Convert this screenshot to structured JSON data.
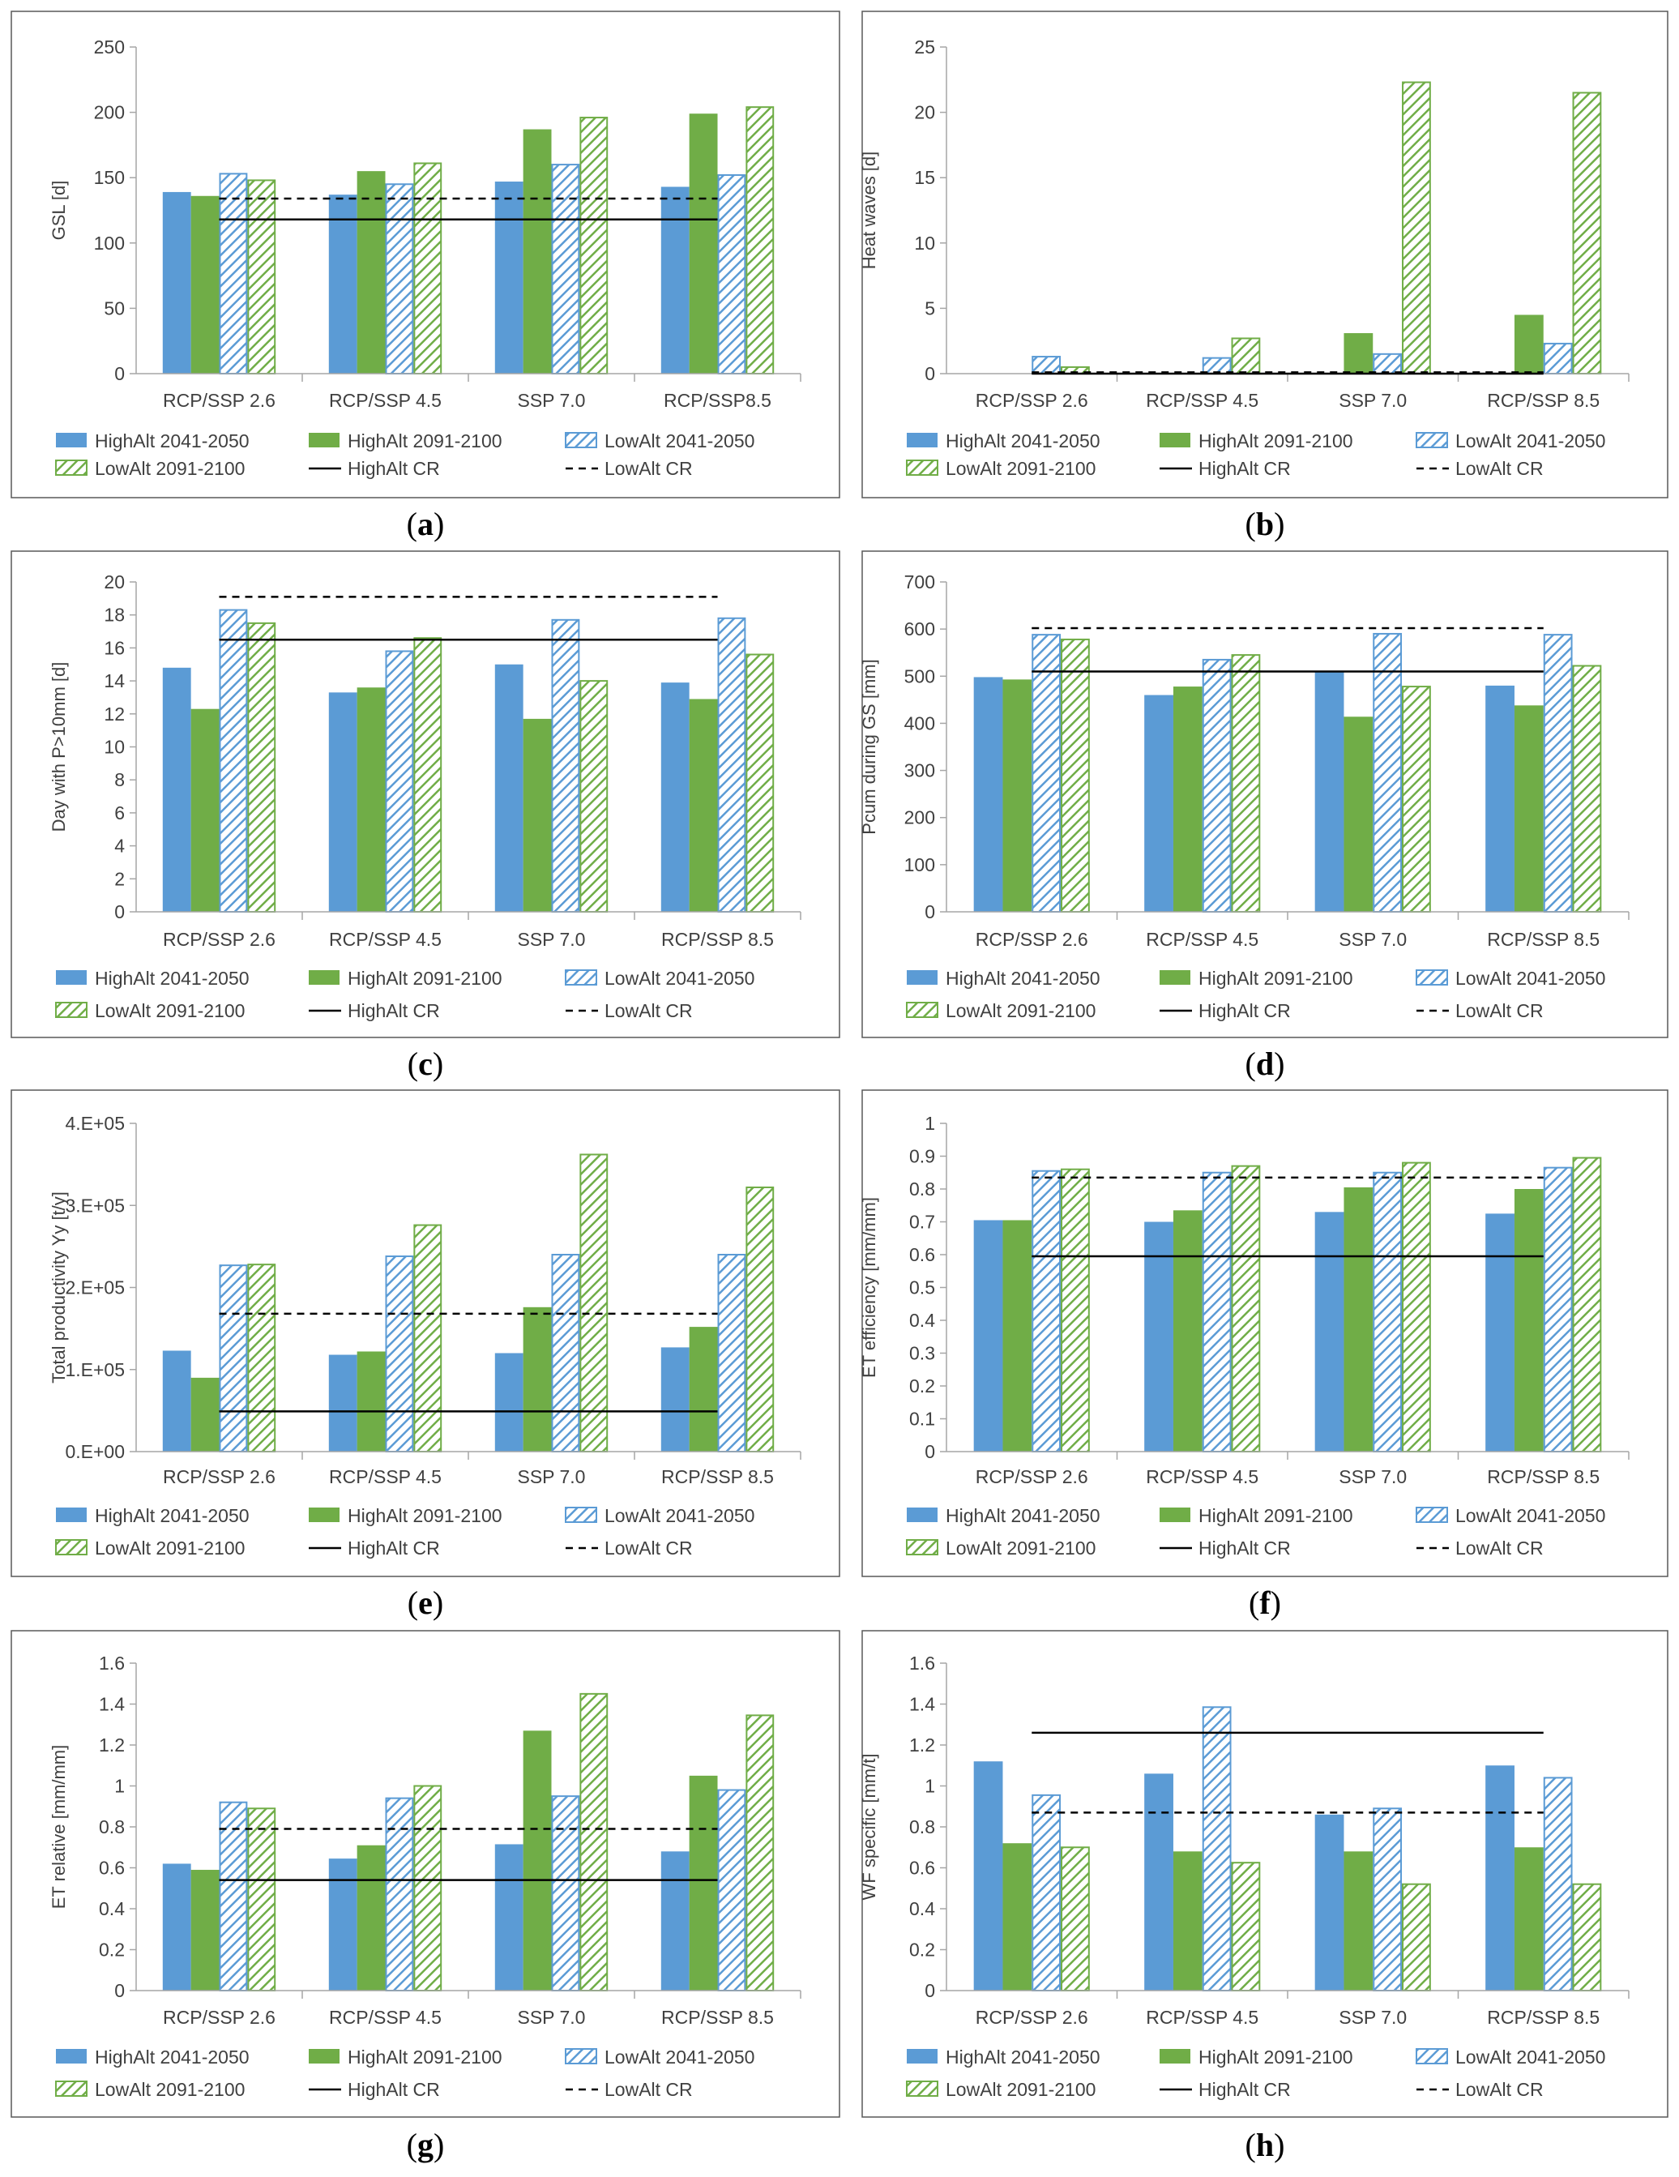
{
  "colors": {
    "blue": "#5b9bd5",
    "green": "#70ad47",
    "axis": "#a6a6a6",
    "text": "#404040"
  },
  "legend": {
    "high_2041": "HighAlt 2041-2050",
    "high_2091": "HighAlt 2091-2100",
    "low_2041": "LowAlt 2041-2050",
    "low_2091": "LowAlt 2091-2100",
    "high_cr": "HighAlt CR",
    "low_cr": "LowAlt CR"
  },
  "chart_data": [
    {
      "panel": "(a)",
      "letter": "a",
      "type": "bar",
      "ylabel": "GSL [d]",
      "ylim": [
        0,
        250
      ],
      "yticks": [
        0,
        50,
        100,
        150,
        200,
        250
      ],
      "ytick_labels": [
        "0",
        "50",
        "100",
        "150",
        "200",
        "250"
      ],
      "categories": [
        "RCP/SSP 2.6",
        "RCP/SSP 4.5",
        "SSP 7.0",
        "RCP/SSP8.5"
      ],
      "series": [
        {
          "name": "HighAlt 2041-2050",
          "values": [
            139,
            137,
            147,
            143
          ]
        },
        {
          "name": "HighAlt 2091-2100",
          "values": [
            136,
            155,
            187,
            199
          ]
        },
        {
          "name": "LowAlt 2041-2050",
          "values": [
            153,
            145,
            160,
            152
          ]
        },
        {
          "name": "LowAlt 2091-2100",
          "values": [
            148,
            161,
            196,
            204
          ]
        }
      ],
      "reference_lines": [
        {
          "name": "HighAlt CR",
          "value": 118
        },
        {
          "name": "LowAlt CR",
          "value": 134
        }
      ]
    },
    {
      "panel": "(b)",
      "letter": "b",
      "type": "bar",
      "ylabel": "Heat waves [d]",
      "ylim": [
        0,
        25
      ],
      "yticks": [
        0,
        5,
        10,
        15,
        20,
        25
      ],
      "ytick_labels": [
        "0",
        "5",
        "10",
        "15",
        "20",
        "25"
      ],
      "categories": [
        "RCP/SSP 2.6",
        "RCP/SSP 4.5",
        "SSP 7.0",
        "RCP/SSP 8.5"
      ],
      "series": [
        {
          "name": "HighAlt 2041-2050",
          "values": [
            0,
            0,
            0,
            0
          ]
        },
        {
          "name": "HighAlt 2091-2100",
          "values": [
            0,
            0,
            3.1,
            4.5
          ]
        },
        {
          "name": "LowAlt 2041-2050",
          "values": [
            1.3,
            1.2,
            1.5,
            2.3
          ]
        },
        {
          "name": "LowAlt 2091-2100",
          "values": [
            0.5,
            2.7,
            22.3,
            21.5
          ]
        }
      ],
      "reference_lines": [
        {
          "name": "HighAlt CR",
          "value": 0
        },
        {
          "name": "LowAlt CR",
          "value": 0.1
        }
      ]
    },
    {
      "panel": "(c)",
      "letter": "c",
      "type": "bar",
      "ylabel": "Day with P>10mm [d]",
      "ylim": [
        0,
        20
      ],
      "yticks": [
        0,
        2,
        4,
        6,
        8,
        10,
        12,
        14,
        16,
        18,
        20
      ],
      "ytick_labels": [
        "0",
        "2",
        "4",
        "6",
        "8",
        "10",
        "12",
        "14",
        "16",
        "18",
        "20"
      ],
      "categories": [
        "RCP/SSP 2.6",
        "RCP/SSP 4.5",
        "SSP 7.0",
        "RCP/SSP 8.5"
      ],
      "series": [
        {
          "name": "HighAlt 2041-2050",
          "values": [
            14.8,
            13.3,
            15.0,
            13.9
          ]
        },
        {
          "name": "HighAlt 2091-2100",
          "values": [
            12.3,
            13.6,
            11.7,
            12.9
          ]
        },
        {
          "name": "LowAlt 2041-2050",
          "values": [
            18.3,
            15.8,
            17.7,
            17.8
          ]
        },
        {
          "name": "LowAlt 2091-2100",
          "values": [
            17.5,
            16.6,
            14.0,
            15.6
          ]
        }
      ],
      "reference_lines": [
        {
          "name": "HighAlt CR",
          "value": 16.5
        },
        {
          "name": "LowAlt CR",
          "value": 19.1
        }
      ]
    },
    {
      "panel": "(d)",
      "letter": "d",
      "type": "bar",
      "ylabel": "Pcum during GS [mm]",
      "ylim": [
        0,
        700
      ],
      "yticks": [
        0,
        100,
        200,
        300,
        400,
        500,
        600,
        700
      ],
      "ytick_labels": [
        "0",
        "100",
        "200",
        "300",
        "400",
        "500",
        "600",
        "700"
      ],
      "categories": [
        "RCP/SSP 2.6",
        "RCP/SSP 4.5",
        "SSP 7.0",
        "RCP/SSP 8.5"
      ],
      "series": [
        {
          "name": "HighAlt 2041-2050",
          "values": [
            498,
            460,
            510,
            480
          ]
        },
        {
          "name": "HighAlt 2091-2100",
          "values": [
            493,
            478,
            414,
            438
          ]
        },
        {
          "name": "LowAlt 2041-2050",
          "values": [
            588,
            535,
            590,
            588
          ]
        },
        {
          "name": "LowAlt 2091-2100",
          "values": [
            578,
            545,
            478,
            522
          ]
        }
      ],
      "reference_lines": [
        {
          "name": "HighAlt CR",
          "value": 510
        },
        {
          "name": "LowAlt CR",
          "value": 602
        }
      ]
    },
    {
      "panel": "(e)",
      "letter": "e",
      "type": "bar",
      "ylabel": "Total productivity Yy [t/y]",
      "ylim": [
        0,
        400000
      ],
      "yticks": [
        0,
        100000,
        200000,
        300000,
        400000
      ],
      "ytick_labels": [
        "0.E+00",
        "1.E+05",
        "2.E+05",
        "3.E+05",
        "4.E+05"
      ],
      "categories": [
        "RCP/SSP 2.6",
        "RCP/SSP 4.5",
        "SSP 7.0",
        "RCP/SSP 8.5"
      ],
      "series": [
        {
          "name": "HighAlt 2041-2050",
          "values": [
            123000,
            118000,
            120000,
            127000
          ]
        },
        {
          "name": "HighAlt 2091-2100",
          "values": [
            90000,
            122000,
            176000,
            152000
          ]
        },
        {
          "name": "LowAlt 2041-2050",
          "values": [
            227000,
            238000,
            240000,
            240000
          ]
        },
        {
          "name": "LowAlt 2091-2100",
          "values": [
            228000,
            276000,
            362000,
            322000
          ]
        }
      ],
      "reference_lines": [
        {
          "name": "HighAlt CR",
          "value": 49000
        },
        {
          "name": "LowAlt CR",
          "value": 168000
        }
      ]
    },
    {
      "panel": "(f)",
      "letter": "f",
      "type": "bar",
      "ylabel": "ET efficiency [mm/mm]",
      "ylim": [
        0,
        1
      ],
      "yticks": [
        0,
        0.1,
        0.2,
        0.3,
        0.4,
        0.5,
        0.6,
        0.7,
        0.8,
        0.9,
        1
      ],
      "ytick_labels": [
        "0",
        "0.1",
        "0.2",
        "0.3",
        "0.4",
        "0.5",
        "0.6",
        "0.7",
        "0.8",
        "0.9",
        "1"
      ],
      "categories": [
        "RCP/SSP 2.6",
        "RCP/SSP 4.5",
        "SSP 7.0",
        "RCP/SSP 8.5"
      ],
      "series": [
        {
          "name": "HighAlt 2041-2050",
          "values": [
            0.705,
            0.7,
            0.73,
            0.725
          ]
        },
        {
          "name": "HighAlt 2091-2100",
          "values": [
            0.705,
            0.735,
            0.805,
            0.8
          ]
        },
        {
          "name": "LowAlt 2041-2050",
          "values": [
            0.855,
            0.85,
            0.85,
            0.865
          ]
        },
        {
          "name": "LowAlt 2091-2100",
          "values": [
            0.86,
            0.87,
            0.88,
            0.895
          ]
        }
      ],
      "reference_lines": [
        {
          "name": "HighAlt CR",
          "value": 0.595
        },
        {
          "name": "LowAlt CR",
          "value": 0.835
        }
      ]
    },
    {
      "panel": "(g)",
      "letter": "g",
      "type": "bar",
      "ylabel": "ET relative [mm/mm]",
      "ylim": [
        0,
        1.6
      ],
      "yticks": [
        0,
        0.2,
        0.4,
        0.6,
        0.8,
        1,
        1.2,
        1.4,
        1.6
      ],
      "ytick_labels": [
        "0",
        "0.2",
        "0.4",
        "0.6",
        "0.8",
        "1",
        "1.2",
        "1.4",
        "1.6"
      ],
      "categories": [
        "RCP/SSP 2.6",
        "RCP/SSP 4.5",
        "SSP 7.0",
        "RCP/SSP 8.5"
      ],
      "series": [
        {
          "name": "HighAlt 2041-2050",
          "values": [
            0.62,
            0.645,
            0.715,
            0.68
          ]
        },
        {
          "name": "HighAlt 2091-2100",
          "values": [
            0.59,
            0.71,
            1.27,
            1.05
          ]
        },
        {
          "name": "LowAlt 2041-2050",
          "values": [
            0.92,
            0.94,
            0.95,
            0.98
          ]
        },
        {
          "name": "LowAlt 2091-2100",
          "values": [
            0.89,
            1.0,
            1.45,
            1.345
          ]
        }
      ],
      "reference_lines": [
        {
          "name": "HighAlt CR",
          "value": 0.54
        },
        {
          "name": "LowAlt CR",
          "value": 0.79
        }
      ]
    },
    {
      "panel": "(h)",
      "letter": "h",
      "type": "bar",
      "ylabel": "WF specific [mm/t]",
      "ylim": [
        0,
        1.6
      ],
      "yticks": [
        0,
        0.2,
        0.4,
        0.6,
        0.8,
        1,
        1.2,
        1.4,
        1.6
      ],
      "ytick_labels": [
        "0",
        "0.2",
        "0.4",
        "0.6",
        "0.8",
        "1",
        "1.2",
        "1.4",
        "1.6"
      ],
      "categories": [
        "RCP/SSP 2.6",
        "RCP/SSP 4.5",
        "SSP 7.0",
        "RCP/SSP 8.5"
      ],
      "series": [
        {
          "name": "HighAlt 2041-2050",
          "values": [
            1.12,
            1.06,
            0.86,
            1.1
          ]
        },
        {
          "name": "HighAlt 2091-2100",
          "values": [
            0.72,
            0.68,
            0.68,
            0.7
          ]
        },
        {
          "name": "LowAlt 2041-2050",
          "values": [
            0.955,
            1.385,
            0.89,
            1.04
          ]
        },
        {
          "name": "LowAlt 2091-2100",
          "values": [
            0.7,
            0.625,
            0.52,
            0.52
          ]
        }
      ],
      "reference_lines": [
        {
          "name": "HighAlt CR",
          "value": 1.26
        },
        {
          "name": "LowAlt CR",
          "value": 0.87
        }
      ]
    }
  ]
}
